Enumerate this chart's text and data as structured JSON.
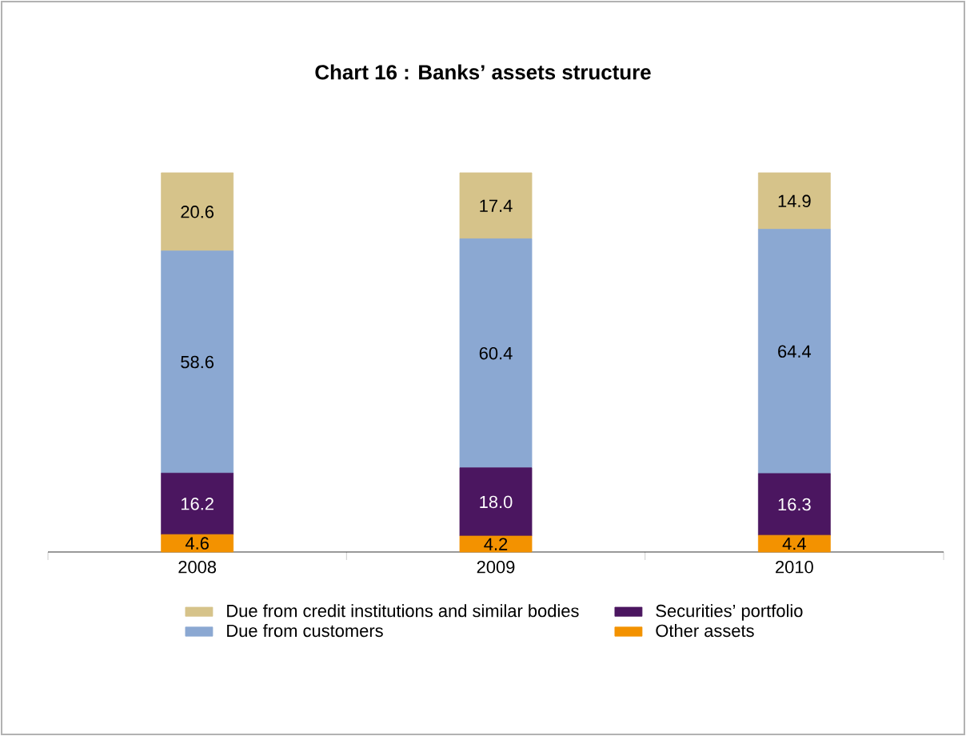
{
  "chart_data": {
    "type": "bar",
    "title": "Chart 16 : Banks’ assets structure",
    "stacked": true,
    "categories": [
      "2008",
      "2009",
      "2010"
    ],
    "legend": "bottom",
    "series": [
      {
        "name": "Other assets",
        "color": "#f39200",
        "values": [
          4.6,
          4.2,
          4.4
        ],
        "value_labels": [
          "4.6",
          "4.2",
          "4.4"
        ]
      },
      {
        "name": "Securities’ portfolio",
        "color": "#4b1660",
        "values": [
          16.2,
          18.0,
          16.3
        ],
        "value_labels": [
          "16.2",
          "18.0",
          "16.3"
        ]
      },
      {
        "name": "Due from customers",
        "color": "#8ba8d2",
        "values": [
          58.6,
          60.4,
          64.4
        ],
        "value_labels": [
          "58.6",
          "60.4",
          "64.4"
        ]
      },
      {
        "name": "Due from credit institutions and similar bodies",
        "color": "#d6c38a",
        "values": [
          20.6,
          17.4,
          14.9
        ],
        "value_labels": [
          "20.6",
          "17.4",
          "14.9"
        ]
      }
    ]
  }
}
